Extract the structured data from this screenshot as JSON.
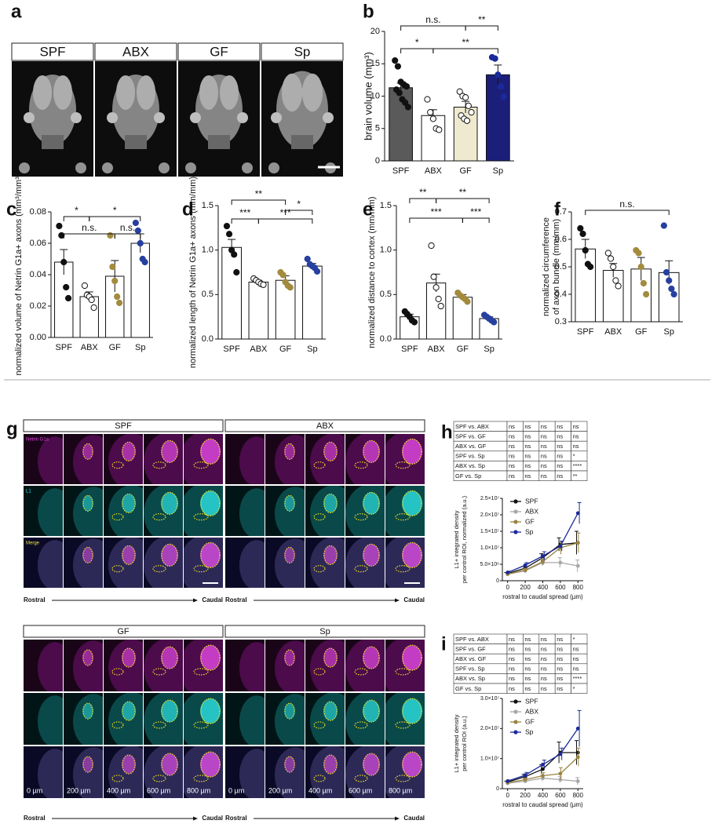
{
  "panel_labels": [
    "a",
    "b",
    "c",
    "d",
    "e",
    "f",
    "g",
    "h",
    "i"
  ],
  "panel_a": {
    "labels": [
      "SPF",
      "ABX",
      "GF",
      "Sp"
    ]
  },
  "panel_g": {
    "groups": [
      "SPF",
      "ABX",
      "GF",
      "Sp"
    ],
    "channels": [
      "Netrin G1a",
      "L1",
      "Merge"
    ],
    "rostral": "Rostral",
    "caudal": "Caudal",
    "distances": [
      "0 µm",
      "200 µm",
      "400 µm",
      "600 µm",
      "800 µm"
    ]
  },
  "tables": [
    {
      "rows": [
        [
          "SPF vs. ABX",
          "ns",
          "ns",
          "ns",
          "ns",
          "ns"
        ],
        [
          "SPF vs. GF",
          "ns",
          "ns",
          "ns",
          "ns",
          "ns"
        ],
        [
          "ABX vs. GF",
          "ns",
          "ns",
          "ns",
          "ns",
          "ns"
        ],
        [
          "SPF vs. Sp",
          "ns",
          "ns",
          "ns",
          "ns",
          "*"
        ],
        [
          "ABX vs. Sp",
          "ns",
          "ns",
          "ns",
          "ns",
          "****"
        ],
        [
          "GF vs. Sp",
          "ns",
          "ns",
          "ns",
          "ns",
          "**"
        ]
      ]
    },
    {
      "rows": [
        [
          "SPF vs. ABX",
          "ns",
          "ns",
          "ns",
          "ns",
          "*"
        ],
        [
          "SPF vs. GF",
          "ns",
          "ns",
          "ns",
          "ns",
          "ns"
        ],
        [
          "ABX vs. GF",
          "ns",
          "ns",
          "ns",
          "ns",
          "ns"
        ],
        [
          "SPF vs. Sp",
          "ns",
          "ns",
          "ns",
          "ns",
          "ns"
        ],
        [
          "ABX vs. Sp",
          "ns",
          "ns",
          "ns",
          "ns",
          "****"
        ],
        [
          "GF vs. Sp",
          "ns",
          "ns",
          "ns",
          "ns",
          "*"
        ]
      ]
    }
  ],
  "chart_data": [
    {
      "type": "bar",
      "y_label": "brain volume (mm³)",
      "categories": [
        "SPF",
        "ABX",
        "GF",
        "Sp"
      ],
      "values": [
        11.3,
        7.0,
        8.3,
        13.3
      ],
      "errors": [
        0.7,
        0.9,
        0.9,
        1.5
      ],
      "points": [
        [
          15.5,
          14.6,
          12.2,
          11.8,
          11.5,
          11,
          10.5,
          9.5,
          9,
          8.3
        ],
        [
          9.5,
          7.5,
          6.5,
          5,
          4.8
        ],
        [
          10.7,
          10,
          9.8,
          8.5,
          7.5,
          7,
          6.5,
          6.2
        ],
        [
          16,
          15.8,
          13.3,
          11.5,
          9.9
        ]
      ],
      "bar_colors": [
        "#5a5a5a",
        "#ffffff",
        "#efe9cf",
        "#1b1f7a"
      ],
      "point_colors": [
        "#111111",
        "#ffffff",
        "#ffffff",
        "#1b2a9a"
      ],
      "ylim": [
        0,
        20
      ],
      "yticks": [
        0,
        5,
        10,
        15,
        20
      ],
      "comparisons": [
        {
          "groups": [
            0,
            2
          ],
          "label": "n.s."
        },
        {
          "groups": [
            2,
            3
          ],
          "label": "**"
        },
        {
          "groups": [
            0,
            1
          ],
          "label": "*"
        },
        {
          "groups": [
            1,
            3
          ],
          "label": "**"
        }
      ]
    },
    {
      "type": "bar",
      "y_label": "normalized volume of Netrin G1a+ axons (mm³/mm³)",
      "categories": [
        "SPF",
        "ABX",
        "GF",
        "Sp"
      ],
      "values": [
        0.048,
        0.026,
        0.039,
        0.06
      ],
      "errors": [
        0.008,
        0.003,
        0.01,
        0.006
      ],
      "points": [
        [
          0.071,
          0.065,
          0.048,
          0.032,
          0.025
        ],
        [
          0.033,
          0.027,
          0.026,
          0.024,
          0.019
        ],
        [
          0.065,
          0.045,
          0.036,
          0.026,
          0.022
        ],
        [
          0.073,
          0.068,
          0.06,
          0.05,
          0.048
        ]
      ],
      "bar_colors": [
        "#ffffff",
        "#ffffff",
        "#ffffff",
        "#ffffff"
      ],
      "point_colors": [
        "#111111",
        "#ffffff",
        "#a38b3e",
        "#2740a0"
      ],
      "ylim": [
        0,
        0.08
      ],
      "yticks": [
        {
          "value": 0,
          "label": "0.00"
        },
        {
          "value": 0.02,
          "label": "0.02"
        },
        {
          "value": 0.04,
          "label": "0.04"
        },
        {
          "value": 0.06,
          "label": "0.06"
        },
        {
          "value": 0.08,
          "label": "0.08"
        }
      ],
      "comparisons": [
        {
          "groups": [
            0,
            1
          ],
          "label": "*"
        },
        {
          "groups": [
            1,
            3
          ],
          "label": "*"
        },
        {
          "groups": [
            0,
            2
          ],
          "label": "n.s."
        },
        {
          "groups": [
            2,
            3
          ],
          "label": "n.s."
        }
      ]
    },
    {
      "type": "bar",
      "y_label": "normalized length of Netrin G1a+ axons (mm/mm)",
      "categories": [
        "SPF",
        "ABX",
        "GF",
        "Sp"
      ],
      "values": [
        1.03,
        0.64,
        0.66,
        0.82
      ],
      "errors": [
        0.09,
        0.02,
        0.05,
        0.03
      ],
      "points": [
        [
          1.27,
          1.18,
          1.0,
          0.95,
          0.75
        ],
        [
          0.68,
          0.66,
          0.64,
          0.62,
          0.61
        ],
        [
          0.75,
          0.72,
          0.64,
          0.6,
          0.58
        ],
        [
          0.9,
          0.84,
          0.82,
          0.8,
          0.76
        ]
      ],
      "bar_colors": [
        "#ffffff",
        "#ffffff",
        "#ffffff",
        "#ffffff"
      ],
      "point_colors": [
        "#111111",
        "#ffffff",
        "#a38b3e",
        "#2740a0"
      ],
      "ylim": [
        0,
        1.5
      ],
      "yticks": [
        {
          "value": 0,
          "label": "0.0"
        },
        0.5,
        {
          "value": 1,
          "label": "1.0"
        },
        1.5
      ],
      "comparisons": [
        {
          "groups": [
            0,
            2
          ],
          "label": "**"
        },
        {
          "groups": [
            2,
            3
          ],
          "label": "*"
        },
        {
          "groups": [
            0,
            1
          ],
          "label": "***"
        },
        {
          "groups": [
            1,
            3
          ],
          "label": "***"
        }
      ]
    },
    {
      "type": "bar",
      "y_label": "normalized distance to cortex (mm/mm)",
      "categories": [
        "SPF",
        "ABX",
        "GF",
        "Sp"
      ],
      "values": [
        0.25,
        0.63,
        0.47,
        0.23
      ],
      "errors": [
        0.03,
        0.1,
        0.03,
        0.02
      ],
      "points": [
        [
          0.31,
          0.28,
          0.25,
          0.21,
          0.19
        ],
        [
          1.05,
          0.7,
          0.58,
          0.45,
          0.37
        ],
        [
          0.52,
          0.49,
          0.47,
          0.45,
          0.42
        ],
        [
          0.27,
          0.25,
          0.23,
          0.21,
          0.19
        ]
      ],
      "bar_colors": [
        "#ffffff",
        "#ffffff",
        "#ffffff",
        "#ffffff"
      ],
      "point_colors": [
        "#111111",
        "#ffffff",
        "#a38b3e",
        "#2740a0"
      ],
      "ylim": [
        0,
        1.5
      ],
      "yticks": [
        {
          "value": 0,
          "label": "0.0"
        },
        0.5,
        {
          "value": 1,
          "label": "1.0"
        },
        1.5
      ],
      "comparisons": [
        {
          "groups": [
            0,
            1
          ],
          "label": "**"
        },
        {
          "groups": [
            1,
            3
          ],
          "label": "**"
        },
        {
          "groups": [
            0,
            2
          ],
          "label": "***"
        },
        {
          "groups": [
            2,
            3
          ],
          "label": "***"
        }
      ]
    },
    {
      "type": "bar",
      "y_label": [
        "normalized circumference",
        "of axon bundle (mm/mm)"
      ],
      "categories": [
        "SPF",
        "ABX",
        "GF",
        "Sp"
      ],
      "values": [
        0.565,
        0.487,
        0.492,
        0.479
      ],
      "errors": [
        0.035,
        0.025,
        0.042,
        0.043
      ],
      "points": [
        [
          0.64,
          0.62,
          0.56,
          0.51,
          0.5
        ],
        [
          0.55,
          0.53,
          0.5,
          0.45,
          0.43
        ],
        [
          0.56,
          0.55,
          0.5,
          0.44,
          0.4
        ],
        [
          0.65,
          0.48,
          0.45,
          0.42,
          0.4
        ]
      ],
      "bar_colors": [
        "#ffffff",
        "#ffffff",
        "#ffffff",
        "#ffffff"
      ],
      "point_colors": [
        "#111111",
        "#ffffff",
        "#a38b3e",
        "#2740a0"
      ],
      "ylim": [
        0.3,
        0.7
      ],
      "yticks": [
        0.3,
        0.4,
        0.5,
        0.6,
        0.7
      ],
      "comparisons": [
        {
          "groups": [
            0,
            3
          ],
          "label": "n.s."
        }
      ]
    },
    {
      "type": "line",
      "y_label": [
        "L1+ integrated density",
        "per control ROI, normalized (a.u.)"
      ],
      "x_label": "rostral to caudal spread (µm)",
      "x": [
        0,
        200,
        400,
        600,
        800
      ],
      "xlim": [
        -60,
        860
      ],
      "xticks": [
        0,
        200,
        400,
        600,
        800
      ],
      "ylim": [
        0,
        25000000
      ],
      "yticks": [
        0,
        {
          "value": 5000000,
          "label": "5.0×10⁶"
        },
        {
          "value": 10000000,
          "label": "1.0×10⁷"
        },
        {
          "value": 15000000,
          "label": "1.5×10⁷"
        },
        {
          "value": 20000000,
          "label": "2.0×10⁷"
        },
        {
          "value": 25000000,
          "label": "2.5×10⁷"
        }
      ],
      "legend": "top-left",
      "series": [
        {
          "name": "SPF",
          "color": "#111111",
          "values": [
            2200000,
            3800000,
            7000000,
            11000000,
            11500000
          ],
          "errors": [
            300000,
            600000,
            1200000,
            2000000,
            3500000
          ]
        },
        {
          "name": "ABX",
          "color": "#a8a8a8",
          "values": [
            2000000,
            3000000,
            5500000,
            5500000,
            4500000
          ],
          "errors": [
            300000,
            500000,
            1000000,
            1500000,
            1800000
          ]
        },
        {
          "name": "GF",
          "color": "#9a8440",
          "values": [
            2000000,
            3200000,
            5800000,
            10000000,
            11500000
          ],
          "errors": [
            300000,
            600000,
            1000000,
            2000000,
            3000000
          ]
        },
        {
          "name": "Sp",
          "color": "#1b2a9a",
          "values": [
            2500000,
            4700000,
            7500000,
            10500000,
            20500000
          ],
          "errors": [
            400000,
            800000,
            1300000,
            1500000,
            3200000
          ]
        }
      ]
    },
    {
      "type": "line",
      "y_label": [
        "L1+ integrated density",
        "per control ROI (a.u.)"
      ],
      "x_label": "rostral to caudal spread (µm)",
      "x": [
        0,
        200,
        400,
        600,
        800
      ],
      "xlim": [
        -60,
        860
      ],
      "xticks": [
        0,
        200,
        400,
        600,
        800
      ],
      "ylim": [
        0,
        30000000
      ],
      "yticks": [
        0,
        {
          "value": 10000000,
          "label": "1.0×10⁷"
        },
        {
          "value": 20000000,
          "label": "2.0×10⁷"
        },
        {
          "value": 30000000,
          "label": "3.0×10⁷"
        }
      ],
      "legend": "top-left",
      "series": [
        {
          "name": "SPF",
          "color": "#111111",
          "values": [
            2200000,
            4000000,
            6500000,
            12000000,
            12000000
          ],
          "errors": [
            300000,
            800000,
            1500000,
            3500000,
            4000000
          ]
        },
        {
          "name": "ABX",
          "color": "#a8a8a8",
          "values": [
            1800000,
            2500000,
            3500000,
            3000000,
            2500000
          ],
          "errors": [
            300000,
            500000,
            1000000,
            1000000,
            1200000
          ]
        },
        {
          "name": "GF",
          "color": "#9a8440",
          "values": [
            2000000,
            3000000,
            4300000,
            5000000,
            10500000
          ],
          "errors": [
            300000,
            600000,
            1000000,
            2000000,
            3000000
          ]
        },
        {
          "name": "Sp",
          "color": "#1b2a9a",
          "values": [
            2500000,
            4500000,
            8000000,
            11500000,
            20000000
          ],
          "errors": [
            400000,
            900000,
            1500000,
            2000000,
            6000000
          ]
        }
      ]
    }
  ]
}
